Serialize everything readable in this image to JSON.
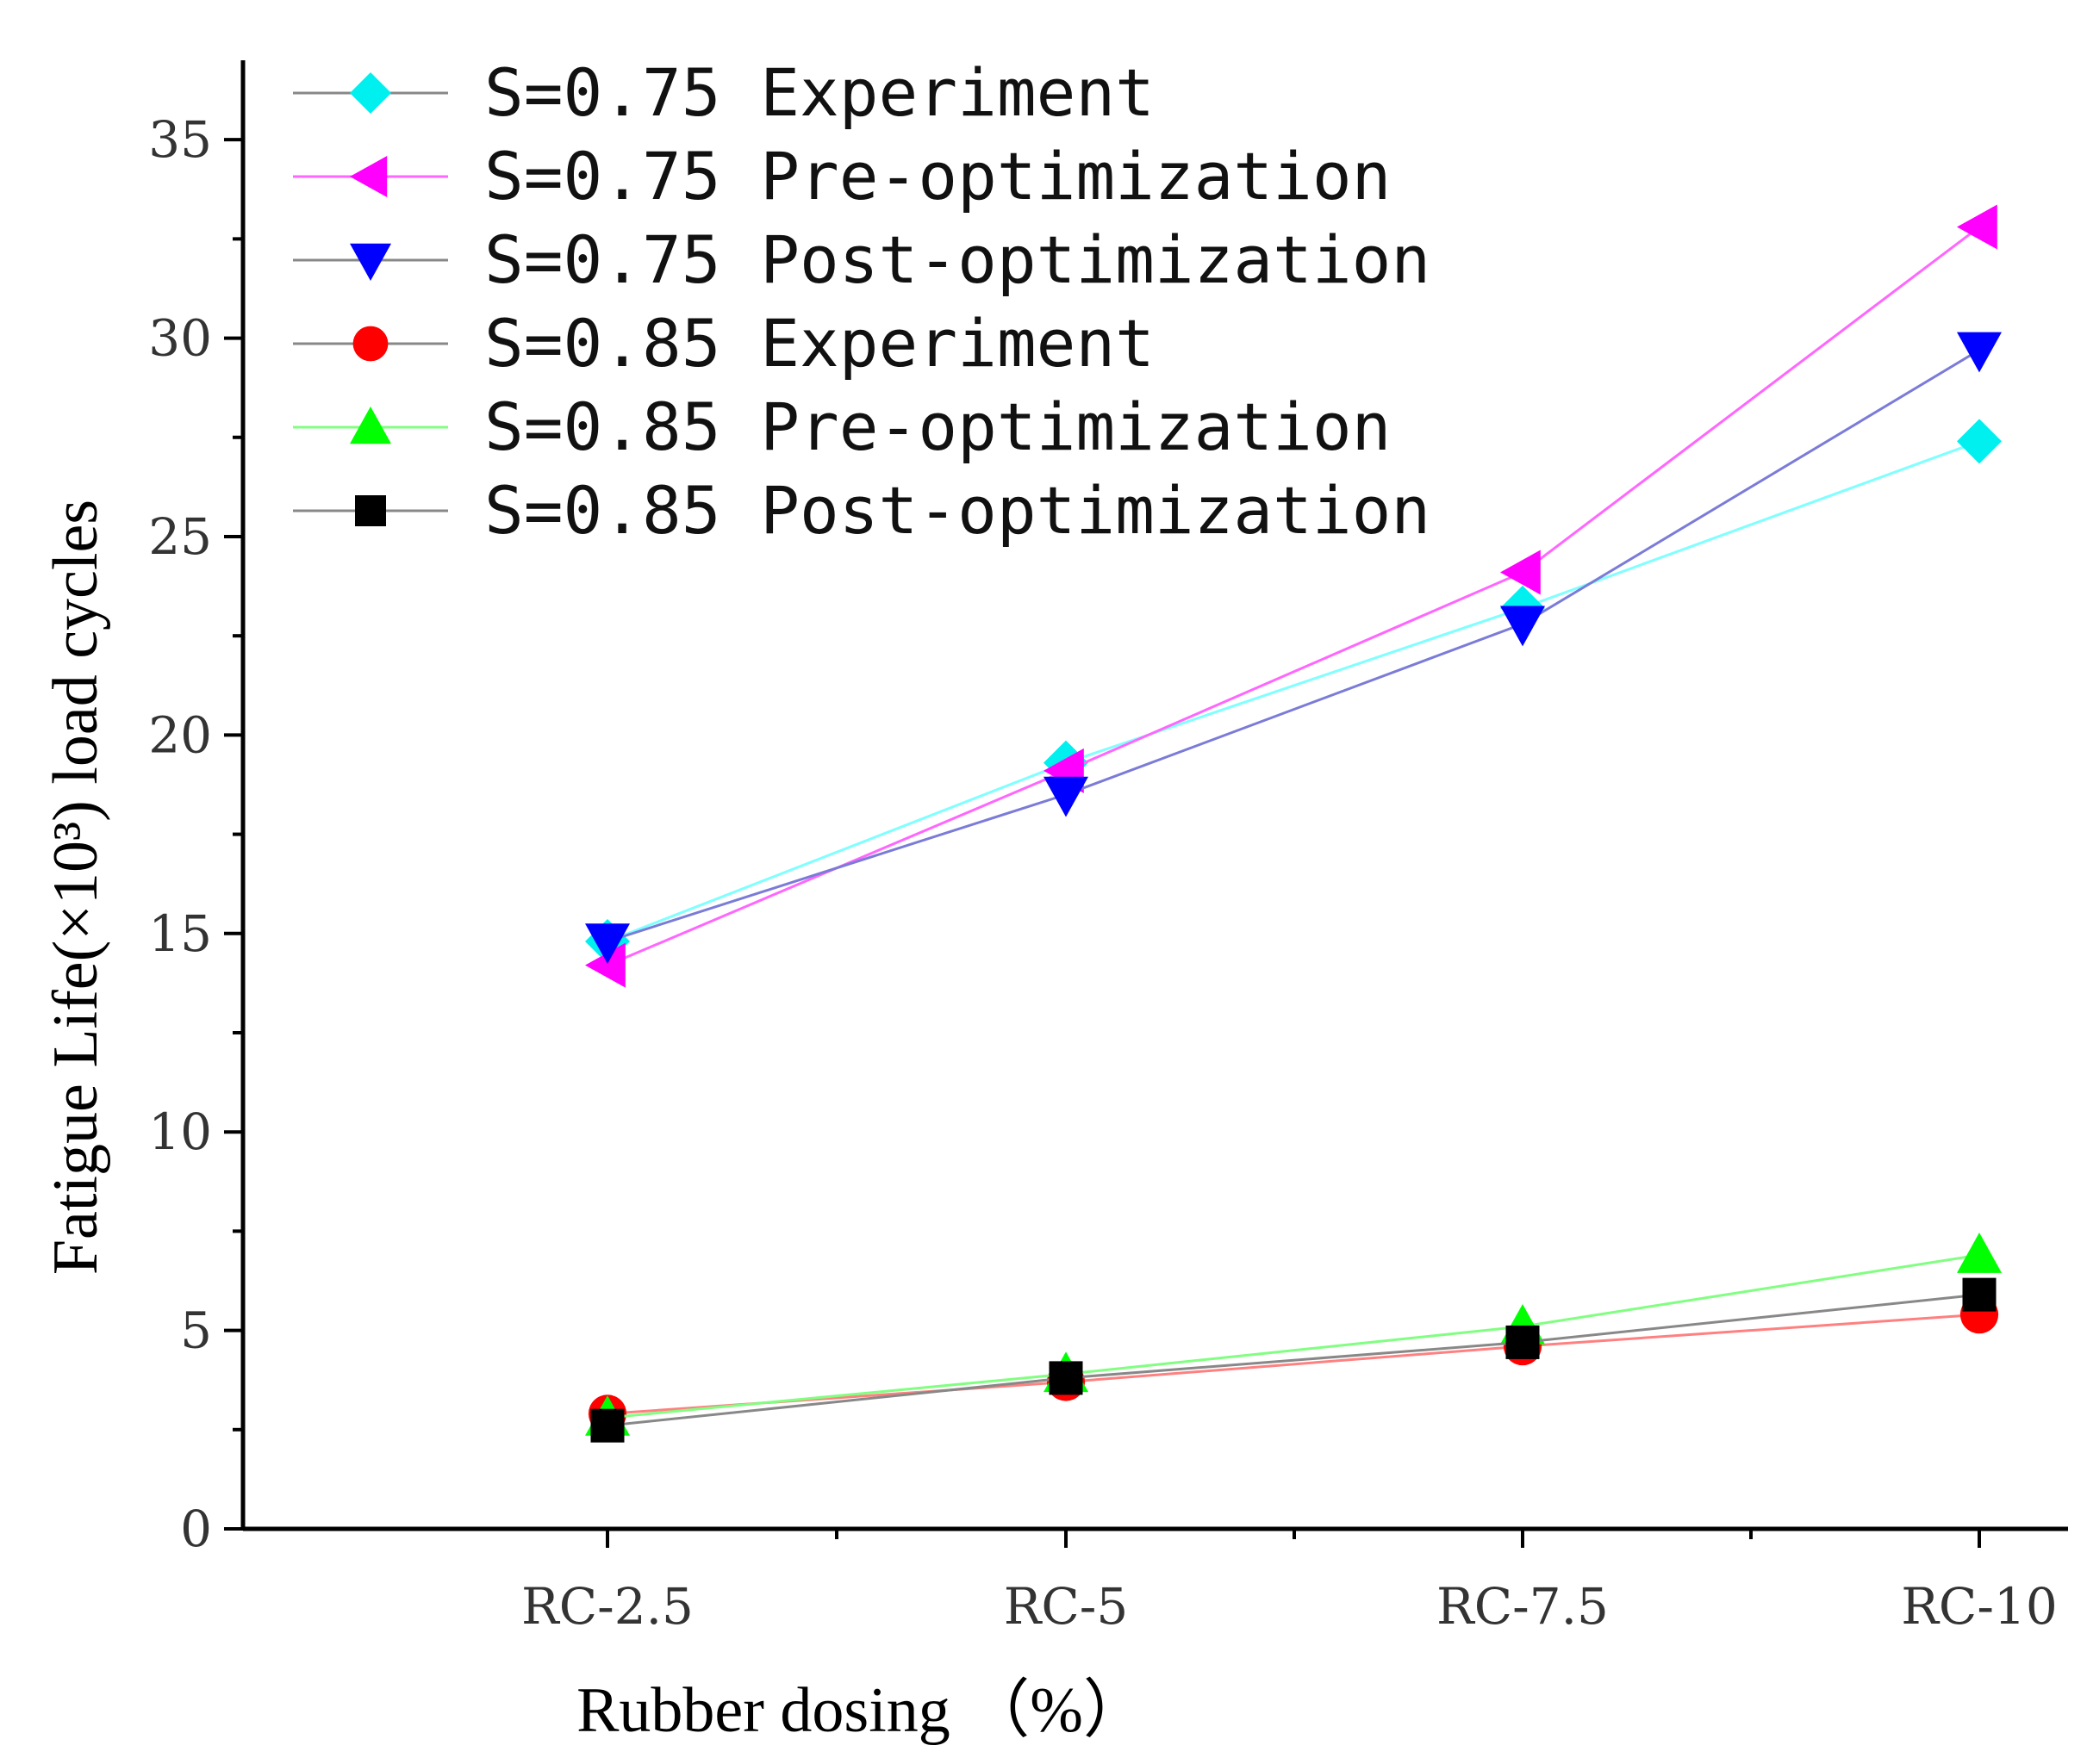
{
  "chart_data": {
    "type": "line",
    "title": "",
    "xlabel": "Rubber dosing （%）",
    "ylabel": "Fatigue Life(×10³) load cycles",
    "categories": [
      "RC-2.5",
      "RC-5",
      "RC-7.5",
      "RC-10"
    ],
    "ylim": [
      0,
      37
    ],
    "yticks": [
      0,
      5,
      10,
      15,
      20,
      25,
      30,
      35
    ],
    "grid": false,
    "legend_position": "top-left",
    "series": [
      {
        "name": "S=0.75 Experiment",
        "values": [
          14.8,
          19.3,
          23.2,
          27.4
        ],
        "marker": "diamond",
        "marker_color": "#00f0f0",
        "line_color": "#80ffff"
      },
      {
        "name": "S=0.75 Pre-optimization",
        "values": [
          14.2,
          19.1,
          24.1,
          32.8
        ],
        "marker": "triangle-left",
        "marker_color": "#ff00ff",
        "line_color": "#ff66ff"
      },
      {
        "name": "S=0.75 Post-optimization",
        "values": [
          14.8,
          18.5,
          22.8,
          29.7
        ],
        "marker": "triangle-down",
        "marker_color": "#0000ff",
        "line_color": "#7b7bd8"
      },
      {
        "name": "S=0.85 Experiment",
        "values": [
          2.9,
          3.7,
          4.6,
          5.4
        ],
        "marker": "circle",
        "marker_color": "#ff0000",
        "line_color": "#ff8080"
      },
      {
        "name": "S=0.85 Pre-optimization",
        "values": [
          2.8,
          3.9,
          5.1,
          6.9
        ],
        "marker": "triangle-up",
        "marker_color": "#00ff00",
        "line_color": "#80ff80"
      },
      {
        "name": "S=0.85 Post-optimization",
        "values": [
          2.6,
          3.8,
          4.7,
          5.9
        ],
        "marker": "square",
        "marker_color": "#000000",
        "line_color": "#888888"
      }
    ]
  }
}
